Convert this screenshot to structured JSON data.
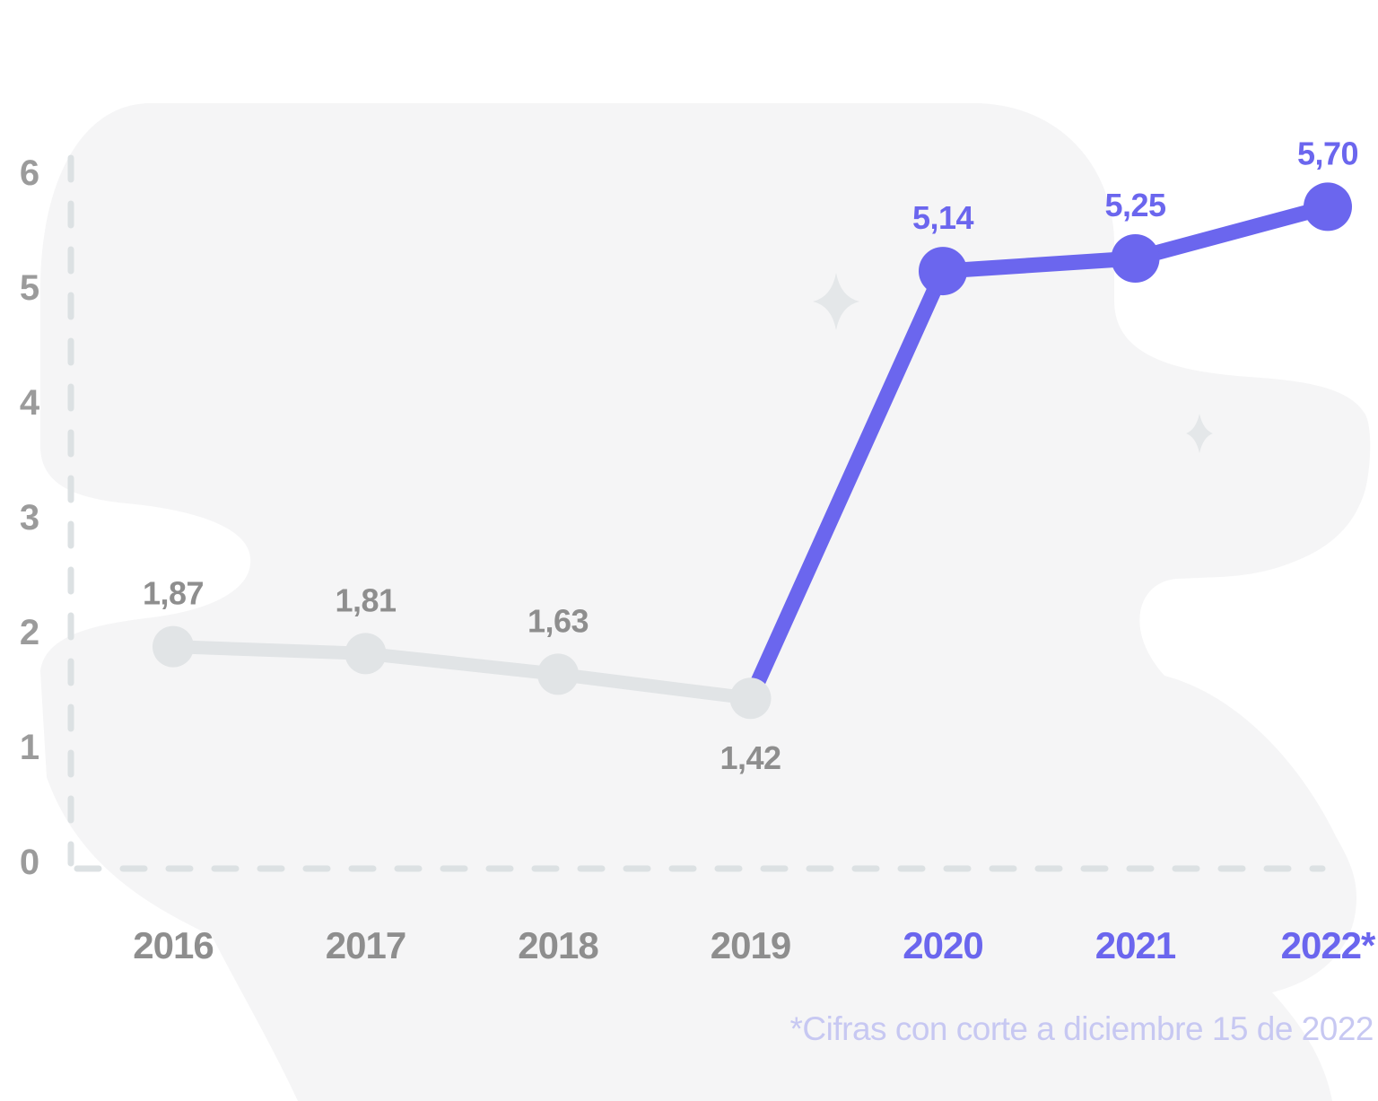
{
  "colors": {
    "accent": "#6b66ee",
    "accent_light": "#c7c8f2",
    "muted_line": "#e1e4e6",
    "text_gray": "#8e8e8e",
    "axis_dash": "#dce1e3",
    "blob": "#f5f5f6",
    "sparkle": "#e4e7e9"
  },
  "chart_data": {
    "type": "line",
    "title": "",
    "x_categories": [
      "2016",
      "2017",
      "2018",
      "2019",
      "2020",
      "2021",
      "2022*"
    ],
    "x_label_colors": [
      "gray",
      "gray",
      "gray",
      "gray",
      "accent",
      "accent",
      "accent"
    ],
    "y_ticks": [
      "0",
      "1",
      "2",
      "3",
      "4",
      "5",
      "6"
    ],
    "y_range": [
      0,
      6
    ],
    "grid": false,
    "legend": false,
    "axis_style": "dashed",
    "series": [
      {
        "name": "historical",
        "color_key": "muted_line",
        "label_color_key": "text_gray",
        "points": [
          {
            "x": "2016",
            "value": 1.87,
            "label": "1,87",
            "label_side": "above",
            "show_dot": true
          },
          {
            "x": "2017",
            "value": 1.81,
            "label": "1,81",
            "label_side": "above",
            "show_dot": true
          },
          {
            "x": "2018",
            "value": 1.63,
            "label": "1,63",
            "label_side": "above",
            "show_dot": true
          },
          {
            "x": "2019",
            "value": 1.42,
            "label": "1,42",
            "label_side": "below",
            "show_dot": true
          }
        ]
      },
      {
        "name": "highlighted",
        "color_key": "accent",
        "label_color_key": "accent",
        "points": [
          {
            "x": "2019",
            "value": 1.42,
            "label": null,
            "label_side": null,
            "show_dot": false
          },
          {
            "x": "2020",
            "value": 5.14,
            "label": "5,14",
            "label_side": "above",
            "show_dot": true
          },
          {
            "x": "2021",
            "value": 5.25,
            "label": "5,25",
            "label_side": "above",
            "show_dot": true
          },
          {
            "x": "2022*",
            "value": 5.7,
            "label": "5,70",
            "label_side": "above",
            "show_dot": true
          }
        ]
      }
    ]
  },
  "footnote": "*Cifras con corte a diciembre 15 de 2022"
}
